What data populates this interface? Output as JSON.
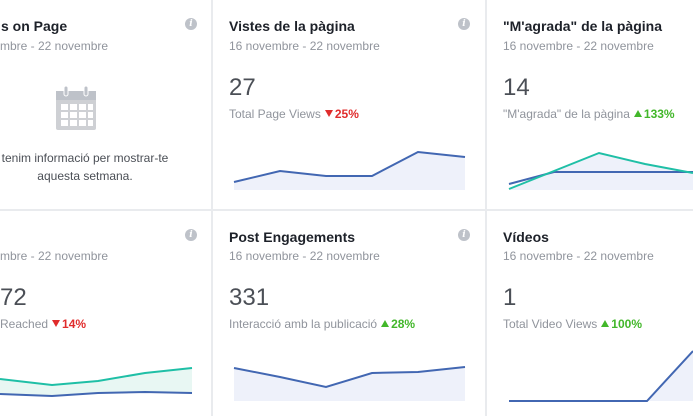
{
  "cards": [
    {
      "id": "actions",
      "title": "s on Page",
      "date": "mbre - 22 novembre",
      "empty_line1": "tenim informació per mostrar-te",
      "empty_line2": "aquesta setmana.",
      "icon": "calendar-icon"
    },
    {
      "id": "page-views",
      "title": "Vistes de la pàgina",
      "date": "16 novembre - 22 novembre",
      "metric": "27",
      "label": "Total Page Views",
      "change": "25%",
      "trend": "down"
    },
    {
      "id": "page-likes",
      "title": "\"M'agrada\" de la pàgina",
      "date": "16 novembre - 22 novembre",
      "metric": "14",
      "label": "\"M'agrada\" de la pàgina",
      "change": "133%",
      "trend": "up"
    },
    {
      "id": "reach",
      "title": "",
      "date": "mbre - 22 novembre",
      "metric": "72",
      "label": "Reached",
      "change": "14%",
      "trend": "down"
    },
    {
      "id": "post-engagements",
      "title": "Post Engagements",
      "date": "16 novembre - 22 novembre",
      "metric": "331",
      "label": "Interacció amb la publicació",
      "change": "28%",
      "trend": "up"
    },
    {
      "id": "videos",
      "title": "Vídeos",
      "date": "16 novembre - 22 novembre",
      "metric": "1",
      "label": "Total Video Views",
      "change": "100%",
      "trend": "up"
    }
  ],
  "colors": {
    "blue_line": "#4267b2",
    "teal_line": "#1fbfa6",
    "area_fill": "#eef1fa",
    "down": "#e02c2c",
    "up": "#42b72a"
  },
  "info_glyph": "i"
}
